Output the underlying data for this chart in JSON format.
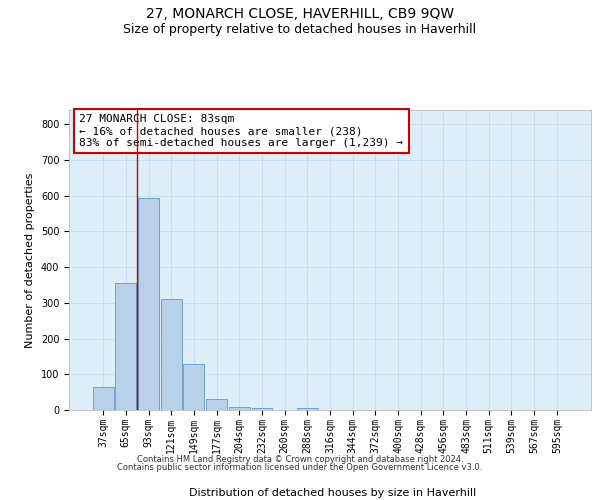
{
  "title": "27, MONARCH CLOSE, HAVERHILL, CB9 9QW",
  "subtitle": "Size of property relative to detached houses in Haverhill",
  "xlabel": "Distribution of detached houses by size in Haverhill",
  "ylabel": "Number of detached properties",
  "categories": [
    "37sqm",
    "65sqm",
    "93sqm",
    "121sqm",
    "149sqm",
    "177sqm",
    "204sqm",
    "232sqm",
    "260sqm",
    "288sqm",
    "316sqm",
    "344sqm",
    "372sqm",
    "400sqm",
    "428sqm",
    "456sqm",
    "483sqm",
    "511sqm",
    "539sqm",
    "567sqm",
    "595sqm"
  ],
  "values": [
    65,
    357,
    593,
    312,
    128,
    30,
    8,
    5,
    0,
    5,
    0,
    0,
    0,
    0,
    0,
    0,
    0,
    0,
    0,
    0,
    0
  ],
  "bar_color": "#b8d0e8",
  "bar_edge_color": "#5b9bd5",
  "grid_color": "#c8dff0",
  "background_color": "#deeef8",
  "vline_x": 1.5,
  "vline_color": "#cc0000",
  "annotation_text": "27 MONARCH CLOSE: 83sqm\n← 16% of detached houses are smaller (238)\n83% of semi-detached houses are larger (1,239) →",
  "annotation_box_color": "#ffffff",
  "annotation_box_edge": "#cc0000",
  "ylim": [
    0,
    840
  ],
  "yticks": [
    0,
    100,
    200,
    300,
    400,
    500,
    600,
    700,
    800
  ],
  "footer_line1": "Contains HM Land Registry data © Crown copyright and database right 2024.",
  "footer_line2": "Contains public sector information licensed under the Open Government Licence v3.0.",
  "title_fontsize": 10,
  "subtitle_fontsize": 9,
  "axis_label_fontsize": 8,
  "tick_fontsize": 7,
  "annotation_fontsize": 8,
  "footer_fontsize": 6
}
